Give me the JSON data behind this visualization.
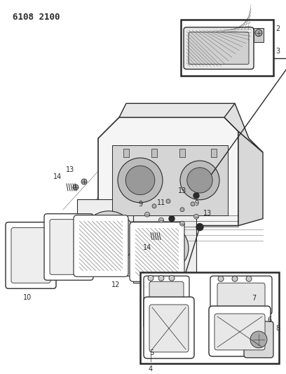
{
  "title_code": "6108 2100",
  "bg_color": "#ffffff",
  "lc": "#2a2a2a",
  "fig_width": 4.08,
  "fig_height": 5.33,
  "dpi": 100
}
